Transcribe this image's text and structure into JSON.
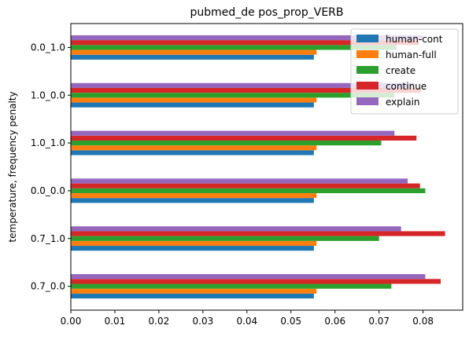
{
  "chart_data": {
    "type": "bar",
    "orientation": "horizontal",
    "title": "pubmed_de pos_prop_VERB",
    "xlabel": "",
    "ylabel": "temperature, frequency penalty",
    "xlim": [
      0.0,
      0.089
    ],
    "xticks": [
      "0.00",
      "0.01",
      "0.02",
      "0.03",
      "0.04",
      "0.05",
      "0.06",
      "0.07",
      "0.08"
    ],
    "categories": [
      "0.0_1.0",
      "1.0_0.0",
      "1.0_1.0",
      "0.0_0.0",
      "0.7_1.0",
      "0.7_0.0"
    ],
    "series": [
      {
        "name": "human-cont",
        "color": "#1f77b4",
        "values": [
          0.0552,
          0.0552,
          0.0552,
          0.0552,
          0.0552,
          0.0552
        ]
      },
      {
        "name": "human-full",
        "color": "#ff7f0e",
        "values": [
          0.0558,
          0.0558,
          0.0558,
          0.0558,
          0.0558,
          0.0558
        ]
      },
      {
        "name": "create",
        "color": "#2ca02c",
        "values": [
          0.074,
          0.0735,
          0.0705,
          0.0805,
          0.07,
          0.0728
        ]
      },
      {
        "name": "continue",
        "color": "#d62728",
        "values": [
          0.079,
          0.0795,
          0.0785,
          0.0793,
          0.085,
          0.084
        ]
      },
      {
        "name": "explain",
        "color": "#9467bd",
        "values": [
          0.08,
          0.078,
          0.0735,
          0.0765,
          0.075,
          0.0805
        ]
      }
    ],
    "legend": "top-right",
    "grid": false
  }
}
